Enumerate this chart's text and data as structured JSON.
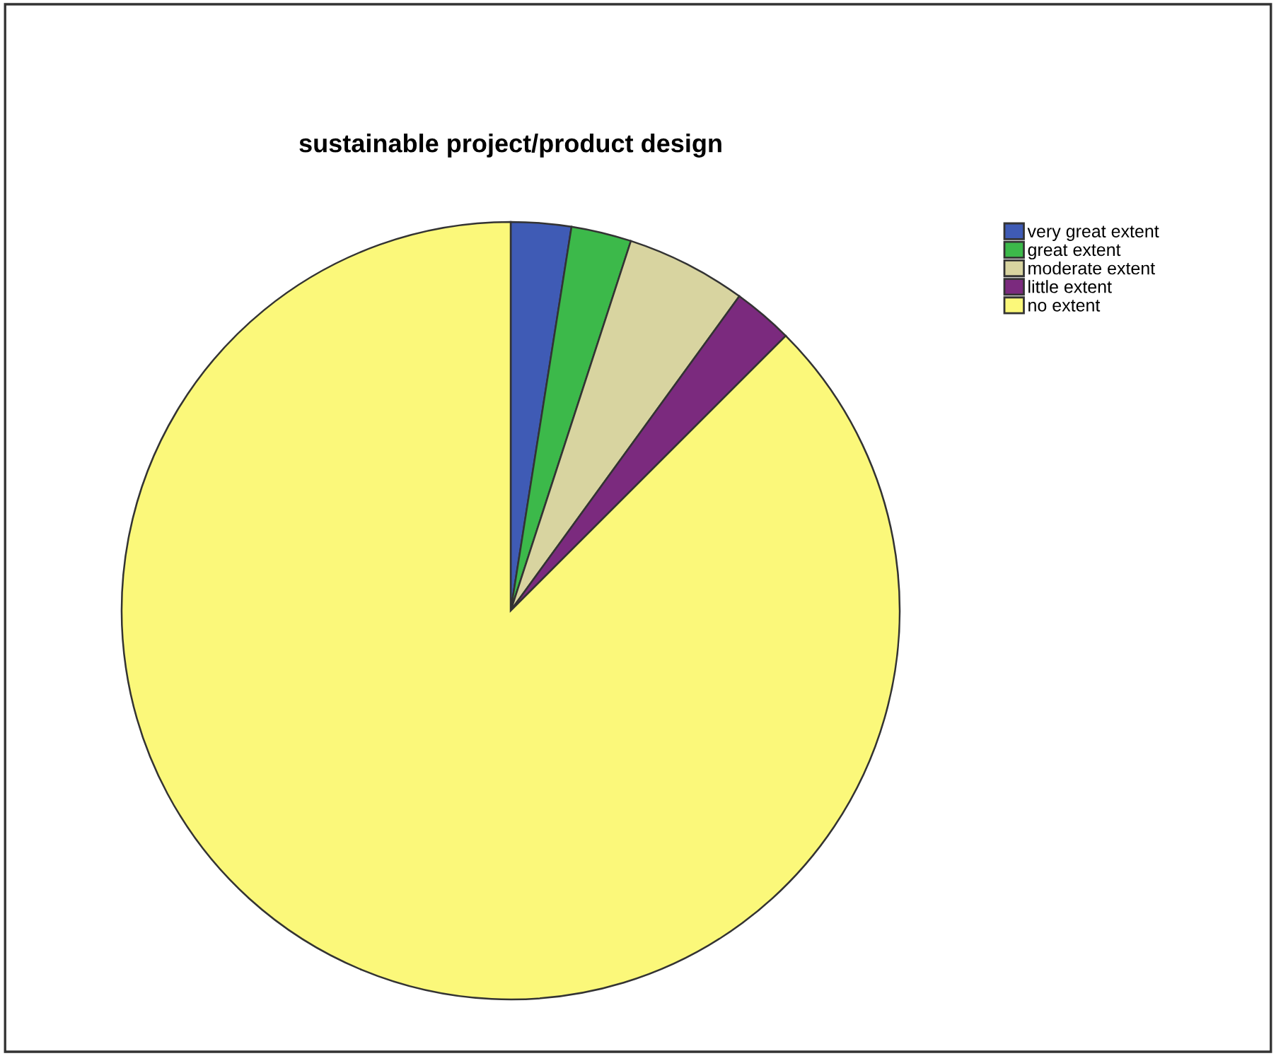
{
  "chart_data": {
    "type": "pie",
    "title": "sustainable project/product design",
    "categories": [
      "very great extent",
      "great extent",
      "moderate extent",
      "little extent",
      "no extent"
    ],
    "values": [
      2.5,
      2.5,
      5,
      2.5,
      87.5
    ],
    "colors": [
      "#3f5bb5",
      "#3cb94a",
      "#d8d4a0",
      "#7b2a7e",
      "#fbf87a"
    ],
    "legend": "top right"
  }
}
